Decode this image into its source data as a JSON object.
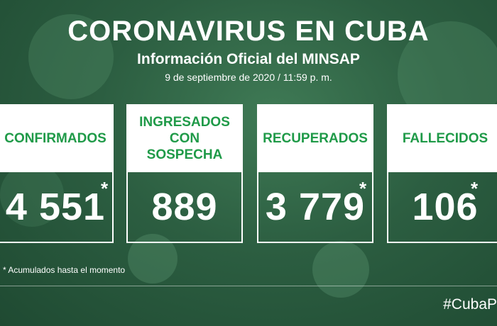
{
  "header": {
    "title": "CORONAVIRUS EN CUBA",
    "subtitle": "Información Oficial del MINSAP",
    "date": "9 de septiembre de 2020 / 11:59 p. m."
  },
  "cards": [
    {
      "label": "CONFIRMADOS",
      "value": "4 551",
      "asterisk": "*"
    },
    {
      "label": "INGRESADOS CON SOSPECHA",
      "value": "889",
      "asterisk": ""
    },
    {
      "label": "RECUPERADOS",
      "value": "3 779",
      "asterisk": "*"
    },
    {
      "label": "FALLECIDOS",
      "value": "106",
      "asterisk": "*"
    }
  ],
  "footnote": "* Acumulados hasta el momento",
  "hashtag": "#CubaP",
  "colors": {
    "label_green": "#1f9a48",
    "background": "#2c5e41"
  }
}
